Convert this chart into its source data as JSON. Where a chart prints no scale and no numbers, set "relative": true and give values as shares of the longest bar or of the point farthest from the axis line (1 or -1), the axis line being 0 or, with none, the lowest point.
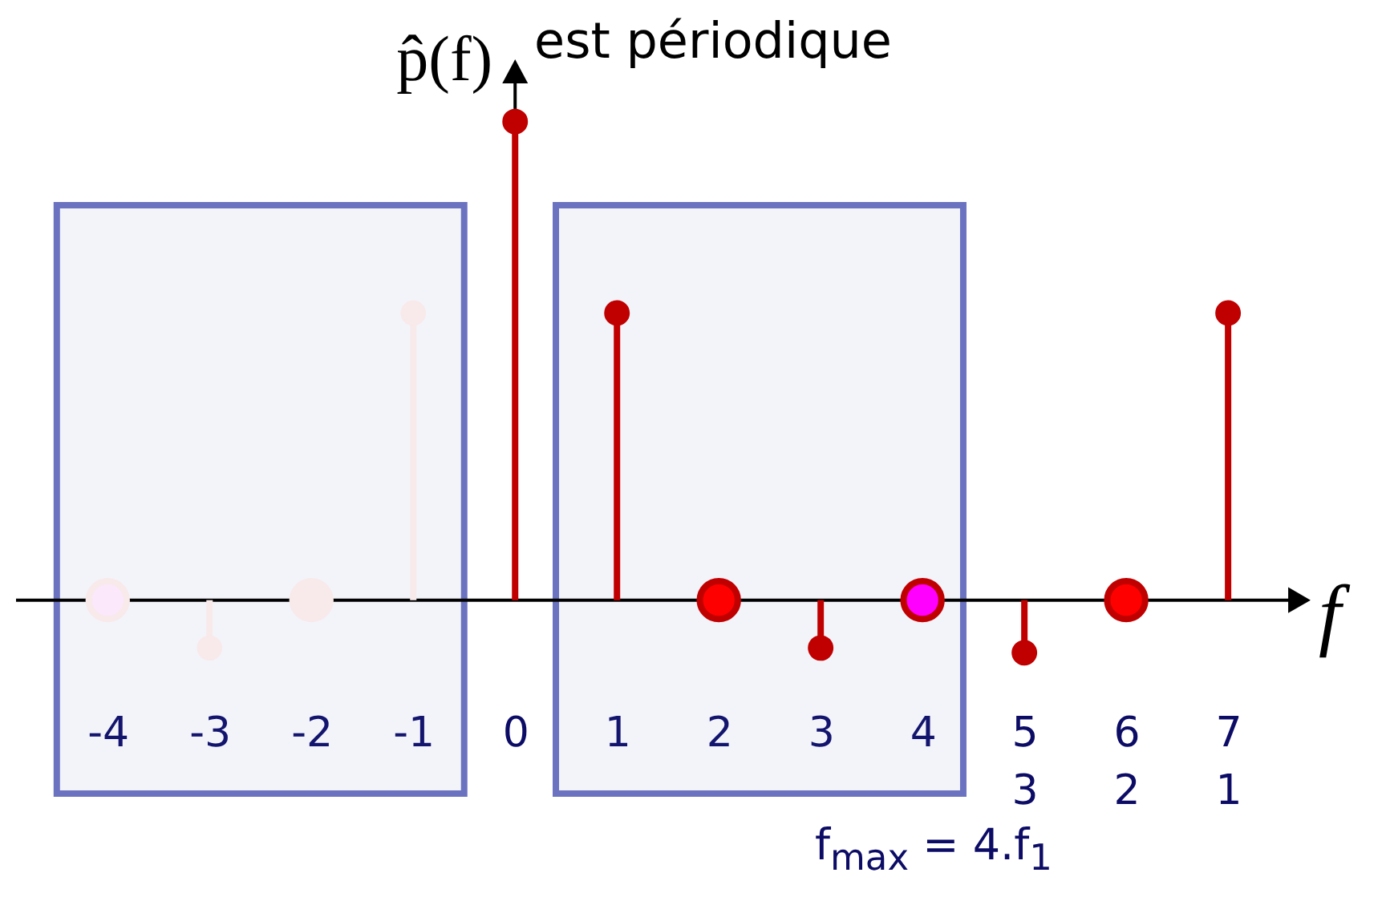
{
  "chart_data": {
    "type": "lollipop",
    "relative": true,
    "xlabel": "f",
    "ylabel": "p̂(f)",
    "annotations": [
      "est périodique",
      "f$_{max}$ = 4.f$_{1}$"
    ],
    "xlim": [
      -4.9,
      7.7
    ],
    "xticks": [
      -4,
      -3,
      -2,
      -1,
      0,
      1,
      2,
      3,
      4,
      {
        "value": 5,
        "label": "5\n3"
      },
      {
        "value": 6,
        "label": "6\n2"
      },
      {
        "value": 7,
        "label": "7\n1"
      }
    ],
    "tick_labels": "x",
    "marker": "circle",
    "bands": [
      {
        "axis": "x",
        "from": -4.5,
        "to": -0.5,
        "color": "#6b72c0"
      },
      {
        "axis": "x",
        "from": 0.4,
        "to": 4.4,
        "color": "#6b72c0"
      }
    ],
    "series": [
      {
        "type": "lollipop",
        "color": "#f8eaea",
        "colors": [
          "#fbe8fb",
          "#f8eaea",
          "#f8eaea",
          "#f8eaea"
        ],
        "x": [
          -4,
          -3,
          -2,
          -1
        ],
        "values": [
          0,
          -0.1,
          0,
          0.6
        ],
        "sizes": [
          1,
          0.4,
          1,
          0.4
        ]
      },
      {
        "type": "lollipop",
        "color": "#c00000",
        "colors": [
          "#c00000",
          "#c00000",
          "#ff0000",
          "#c00000",
          "#ff00ff",
          "#c00000",
          "#ff0000",
          "#c00000"
        ],
        "x": [
          0,
          1,
          2,
          3,
          4,
          5,
          6,
          7
        ],
        "values": [
          1,
          0.6,
          0,
          -0.1,
          0,
          -0.11,
          0,
          0.6
        ],
        "sizes": [
          0.4,
          0.4,
          1,
          0.4,
          1,
          0.4,
          1,
          0.4
        ]
      }
    ]
  }
}
